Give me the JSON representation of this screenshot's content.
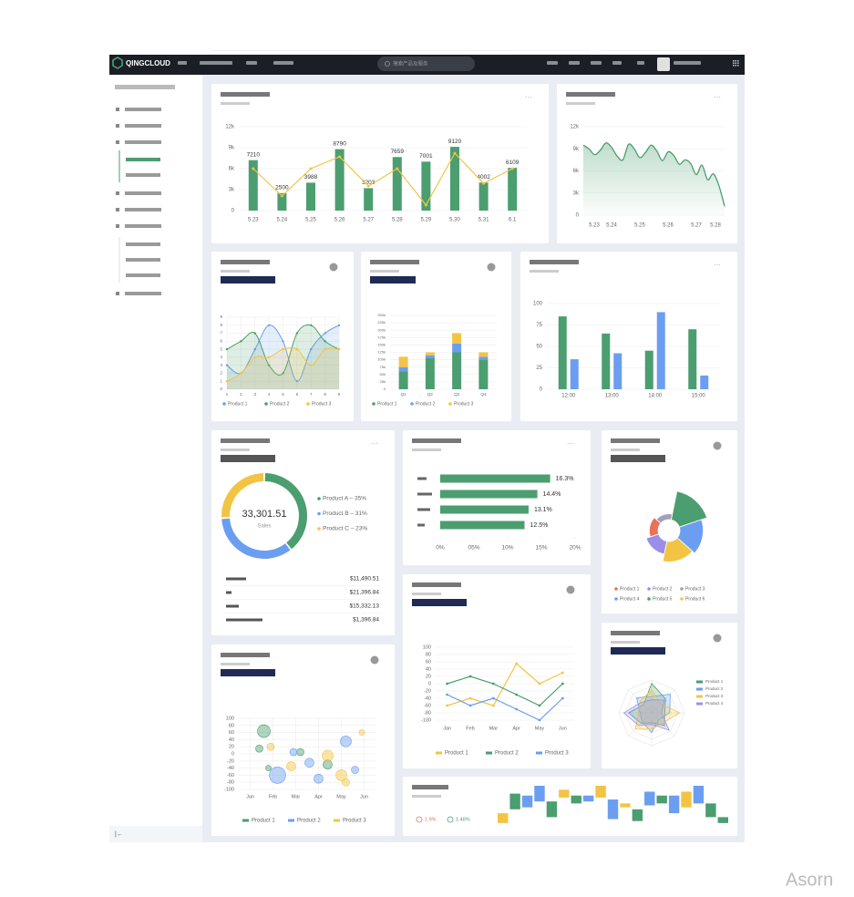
{
  "header": {
    "logo": "QINGCLOUD",
    "search_placeholder": "搜索产品及服务"
  },
  "watermark": "Asorn",
  "charts": [
    {
      "type": "bar",
      "categories": [
        "5.23",
        "5.24",
        "5.25",
        "5.26",
        "5.27",
        "5.28",
        "5.29",
        "5.30",
        "5.31",
        "6.1"
      ],
      "series": [
        {
          "color": "#4b9e6f",
          "values": [
            7210,
            2500,
            3988,
            8790,
            3203,
            7659,
            7001,
            9120,
            4002,
            6109
          ],
          "data_labels": true
        },
        {
          "type": "line",
          "color": "#f3c443",
          "values": [
            6000,
            2100,
            6000,
            7700,
            3500,
            6000,
            800,
            8200,
            3900,
            6000
          ]
        }
      ],
      "ylim": [
        0,
        12000
      ],
      "yticks": [
        0,
        {
          "value": 3000,
          "label": "3k"
        },
        {
          "value": 6000,
          "label": "6k"
        },
        {
          "value": 9000,
          "label": "9k"
        },
        {
          "value": 12000,
          "label": "12k"
        }
      ],
      "grid": true
    },
    {
      "type": "area",
      "color": "#4b9e6f",
      "categories": [
        "5.23",
        null,
        null,
        null,
        null,
        "5.24",
        null,
        null,
        null,
        null,
        "5.25",
        null,
        null,
        null,
        null,
        "5.26",
        null,
        null,
        null,
        null,
        "5.27",
        null,
        null,
        null,
        null,
        "5.28"
      ],
      "values": [
        9500,
        9000,
        8200,
        8800,
        9800,
        9200,
        8000,
        7500,
        9600,
        9000,
        7800,
        8500,
        9500,
        8700,
        7400,
        8600,
        8100,
        6900,
        7500,
        7000,
        5500,
        6800,
        4800,
        5600,
        4000,
        1200
      ],
      "ylim": [
        0,
        12000
      ],
      "yticks": [
        0,
        {
          "value": 3000,
          "label": "3k"
        },
        {
          "value": 6000,
          "label": "6k"
        },
        {
          "value": 9000,
          "label": "9k"
        },
        {
          "value": 12000,
          "label": "12k"
        }
      ],
      "grid": true
    },
    {
      "type": "spline-area",
      "x": [
        1,
        2,
        3,
        4,
        5,
        6,
        7,
        8,
        9
      ],
      "xlim": [
        1,
        9
      ],
      "xticks": [
        1,
        2,
        3,
        4,
        5,
        6,
        7,
        8,
        9
      ],
      "ylim": [
        0,
        9
      ],
      "yticks": [
        0,
        1,
        2,
        3,
        4,
        5,
        6,
        7,
        8,
        9
      ],
      "grid": true,
      "legend": "bottom",
      "series": [
        {
          "name": "Product 1",
          "color": "#6b9ef0",
          "values": [
            3,
            2,
            5,
            8,
            6,
            1,
            5,
            7,
            8
          ]
        },
        {
          "name": "Product 2",
          "color": "#4b9e6f",
          "values": [
            5,
            6,
            7,
            3,
            2,
            7,
            8,
            6,
            5
          ]
        },
        {
          "name": "Product 3",
          "color": "#f3c443",
          "values": [
            1,
            2,
            4,
            4,
            5,
            5,
            3,
            5,
            5
          ]
        }
      ]
    },
    {
      "type": "stacked-bar",
      "categories": [
        "Q1",
        "Q2",
        "Q3",
        "Q4"
      ],
      "ylim": [
        0,
        250000
      ],
      "grid": true,
      "legend": "bottom",
      "yticks": [
        0,
        {
          "value": 25000,
          "label": "25k"
        },
        {
          "value": 50000,
          "label": "50k"
        },
        {
          "value": 75000,
          "label": "75k"
        },
        {
          "value": 100000,
          "label": "100k"
        },
        {
          "value": 125000,
          "label": "125k"
        },
        {
          "value": 150000,
          "label": "150k"
        },
        {
          "value": 175000,
          "label": "175k"
        },
        {
          "value": 200000,
          "label": "200k"
        },
        {
          "value": 225000,
          "label": "225k"
        },
        {
          "value": 250000,
          "label": "250k"
        }
      ],
      "series": [
        {
          "name": "Product 1",
          "color": "#4b9e6f",
          "values": [
            60000,
            105000,
            125000,
            100000
          ]
        },
        {
          "name": "Product 2",
          "color": "#6b9ef0",
          "values": [
            15000,
            10000,
            30000,
            10000
          ]
        },
        {
          "name": "Product 3",
          "color": "#f3c443",
          "values": [
            35000,
            10000,
            35000,
            15000
          ]
        }
      ]
    },
    {
      "type": "grouped-bar",
      "categories": [
        "12:00",
        "13:00",
        "14:00",
        "15:00"
      ],
      "ylim": [
        0,
        100
      ],
      "yticks": [
        0,
        25,
        50,
        75,
        100
      ],
      "grid": true,
      "series": [
        {
          "color": "#4b9e6f",
          "values": [
            85,
            65,
            45,
            70
          ]
        },
        {
          "color": "#6b9ef0",
          "values": [
            35,
            42,
            90,
            16
          ]
        }
      ]
    },
    {
      "type": "donut",
      "center_value": "33,301.51",
      "center_label": "Sales",
      "values": [
        35,
        31,
        23
      ],
      "colors": [
        "#4b9e6f",
        "#6b9ef0",
        "#f3c443"
      ],
      "legend_labels": [
        "Product A – 35%",
        "Product B – 31%",
        "Product C – 23%"
      ],
      "table": [
        "$11,490.51",
        "$21,396.84",
        "$15,332.13",
        "$1,396.84"
      ]
    },
    {
      "type": "horizontal-bar",
      "color": "#4b9e6f",
      "categories": [
        null,
        null,
        null,
        null
      ],
      "values": [
        16.3,
        14.4,
        13.1,
        12.5
      ],
      "value_labels": [
        "16.3%",
        "14.4%",
        "13.1%",
        "12.5%"
      ],
      "xlim": [
        0,
        20
      ],
      "xticks": [
        {
          "value": 0,
          "label": "0%"
        },
        {
          "value": 5,
          "label": "05%"
        },
        {
          "value": 10,
          "label": "10%"
        },
        {
          "value": 15,
          "label": "15%"
        },
        {
          "value": 20,
          "label": "20%"
        }
      ]
    },
    {
      "type": "rose",
      "ylim": [
        0,
        100
      ],
      "series": [
        {
          "name": "Product 1",
          "color": "#e8735a",
          "values": [
            30
          ]
        },
        {
          "name": "Product 2",
          "color": "#9b8ee8",
          "values": [
            45
          ]
        },
        {
          "name": "Product 3",
          "color": "#a59fb8",
          "values": [
            20
          ]
        },
        {
          "name": "Product 4",
          "color": "#6b9ef0",
          "values": [
            80
          ]
        },
        {
          "name": "Product 5",
          "color": "#4b9e6f",
          "values": [
            100
          ]
        },
        {
          "name": "Product 6",
          "color": "#f3c443",
          "values": [
            70
          ]
        }
      ],
      "order": [
        4,
        3,
        5,
        1,
        0,
        2
      ]
    },
    {
      "type": "line",
      "categories": [
        "Jan",
        "Feb",
        "Mar",
        "Apr",
        "May",
        "Jun"
      ],
      "ylim": [
        -100,
        100
      ],
      "yticks": [
        -100,
        -80,
        -60,
        -40,
        -20,
        0,
        20,
        40,
        60,
        80,
        100
      ],
      "grid": true,
      "legend": "bottom",
      "series": [
        {
          "name": "Product 1",
          "color": "#f3c443",
          "values": [
            -60,
            -40,
            -60,
            55,
            0,
            30
          ]
        },
        {
          "name": "Product 2",
          "color": "#4b9e6f",
          "values": [
            0,
            20,
            0,
            -30,
            -60,
            0
          ]
        },
        {
          "name": "Product 3",
          "color": "#6b9ef0",
          "values": [
            -30,
            -60,
            -40,
            -70,
            -100,
            -40
          ]
        }
      ]
    },
    {
      "type": "radar",
      "ylim": [
        0,
        100
      ],
      "legend": "right",
      "series": [
        {
          "name": "Product 1",
          "color": "#4b9e6f",
          "values": [
            90,
            60,
            40,
            55,
            30,
            45,
            70,
            35
          ]
        },
        {
          "name": "Product 2",
          "color": "#6b9ef0",
          "values": [
            50,
            80,
            55,
            30,
            60,
            40,
            35,
            65
          ]
        },
        {
          "name": "Product 3",
          "color": "#f3c443",
          "values": [
            70,
            40,
            85,
            45,
            50,
            70,
            40,
            50
          ]
        },
        {
          "name": "Product 4",
          "color": "#9b8ee8",
          "values": [
            40,
            55,
            30,
            75,
            35,
            55,
            85,
            45
          ]
        }
      ]
    },
    {
      "type": "bubble",
      "xlim": [
        -0.5,
        5.5
      ],
      "xticks": [
        {
          "value": 0,
          "label": "Jan"
        },
        {
          "value": 1,
          "label": "Feb"
        },
        {
          "value": 2,
          "label": "Mar"
        },
        {
          "value": 3,
          "label": "Apr"
        },
        {
          "value": 4,
          "label": "May"
        },
        {
          "value": 5,
          "label": "Jun"
        }
      ],
      "ylim": [
        -100,
        100
      ],
      "yticks": [
        -100,
        -80,
        -60,
        -40,
        -20,
        0,
        20,
        40,
        60,
        80,
        100
      ],
      "grid": true,
      "legend": "bottom",
      "series": [
        {
          "name": "Product 1",
          "color": "#4b9e6f",
          "x": [
            0.6,
            0.4,
            2.2,
            3.4,
            0.8
          ],
          "values": [
            64,
            15,
            5,
            -30,
            -40
          ],
          "sizes": [
            7,
            4,
            4,
            5,
            3
          ]
        },
        {
          "name": "Product 2",
          "color": "#6b9ef0",
          "x": [
            1.2,
            4.2,
            2.6,
            3.0,
            1.9,
            4.6
          ],
          "values": [
            -60,
            35,
            -25,
            -70,
            5,
            -45
          ],
          "sizes": [
            9,
            6,
            5,
            5,
            4,
            4
          ]
        },
        {
          "name": "Product 3",
          "color": "#f3c443",
          "x": [
            0.9,
            3.4,
            4.0,
            1.8,
            4.9,
            4.2
          ],
          "values": [
            20,
            -5,
            -60,
            -35,
            60,
            -80
          ],
          "sizes": [
            4,
            6,
            6,
            5,
            3,
            4
          ]
        }
      ]
    },
    {
      "type": "floating-bar",
      "ylim": [
        0,
        100
      ],
      "ranges": [
        [
          5,
          30
        ],
        [
          40,
          80
        ],
        [
          45,
          75
        ],
        [
          60,
          100
        ],
        [
          20,
          60
        ],
        [
          70,
          90
        ],
        [
          55,
          75
        ],
        [
          60,
          75
        ],
        [
          70,
          100
        ],
        [
          15,
          65
        ],
        [
          45,
          55
        ],
        [
          10,
          40
        ],
        [
          50,
          85
        ],
        [
          55,
          75
        ],
        [
          30,
          75
        ],
        [
          45,
          85
        ],
        [
          55,
          100
        ],
        [
          20,
          55
        ],
        [
          5,
          20
        ]
      ],
      "colors": [
        "#f3c443",
        "#4b9e6f",
        "#6b9ef0",
        "#6b9ef0",
        "#4b9e6f",
        "#f3c443",
        "#4b9e6f",
        "#6b9ef0",
        "#f3c443",
        "#6b9ef0",
        "#f3c443",
        "#4b9e6f",
        "#6b9ef0",
        "#4b9e6f",
        "#6b9ef0",
        "#f3c443",
        "#6b9ef0",
        "#4b9e6f",
        "#4b9e6f"
      ],
      "stats": [
        {
          "value": "1.9%",
          "color": "#e8735a"
        },
        {
          "value": "1.48%",
          "color": "#4b9e6f"
        }
      ]
    }
  ]
}
